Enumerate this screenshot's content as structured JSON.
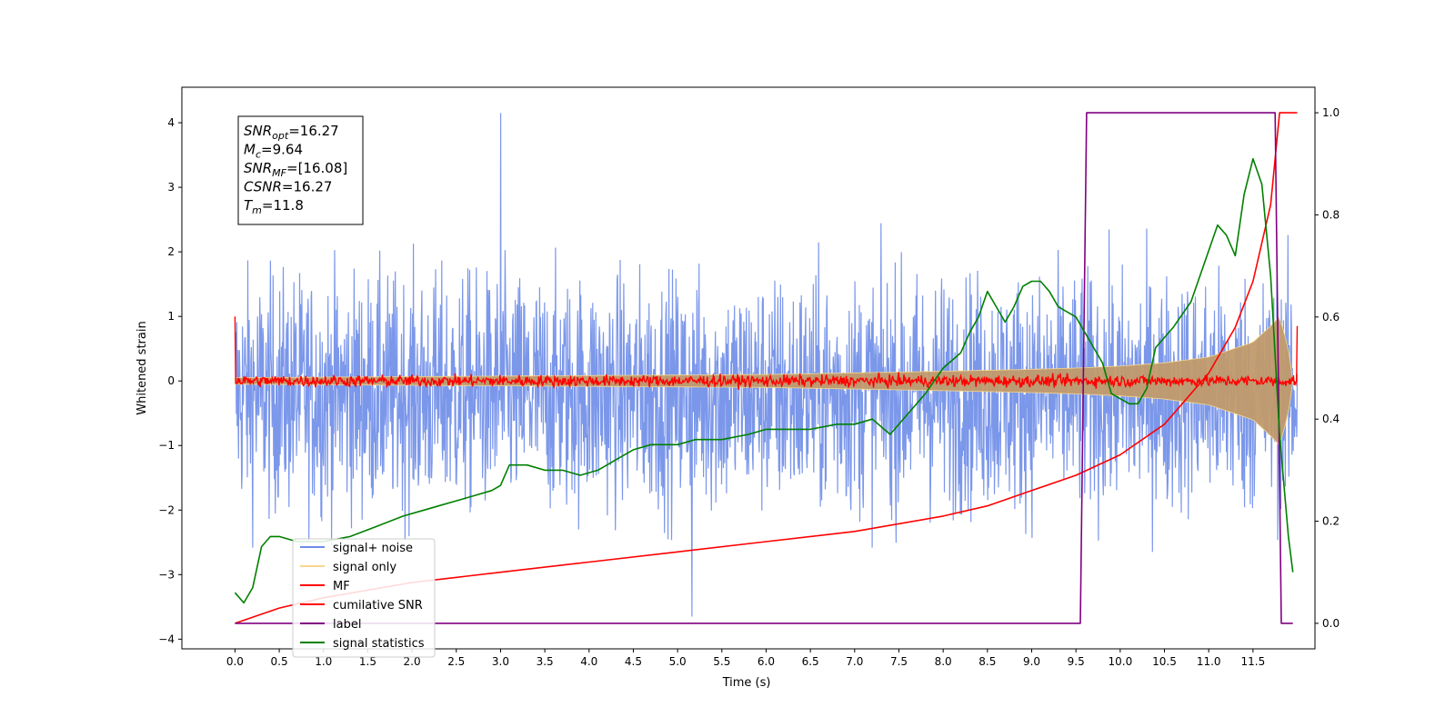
{
  "chart_data": {
    "type": "line",
    "title": "",
    "xlabel": "Time (s)",
    "ylabel": "Whitened strain",
    "y2label": "",
    "xlim": [
      -0.6,
      12.2
    ],
    "ylim": [
      -4.15,
      4.55
    ],
    "y2lim": [
      -0.05,
      1.05
    ],
    "xticks": [
      "0.0",
      "0.5",
      "1.0",
      "1.5",
      "2.0",
      "2.5",
      "3.0",
      "3.5",
      "4.0",
      "4.5",
      "5.0",
      "5.5",
      "6.0",
      "6.5",
      "7.0",
      "7.5",
      "8.0",
      "8.5",
      "9.0",
      "9.5",
      "10.0",
      "10.5",
      "11.0",
      "11.5"
    ],
    "yticks": [
      "−4",
      "−3",
      "−2",
      "−1",
      "0",
      "1",
      "2",
      "3",
      "4"
    ],
    "y2ticks": [
      "0.0",
      "0.2",
      "0.4",
      "0.6",
      "0.8",
      "1.0"
    ],
    "grid": false,
    "legend_position": "lower-left",
    "annotation": {
      "lines": [
        {
          "var": "SNR",
          "sub": "opt",
          "val": "=16.27"
        },
        {
          "var": "M",
          "sub": "c",
          "val": "=9.64"
        },
        {
          "var": "SNR",
          "sub": "MF",
          "val": "=[16.08]"
        },
        {
          "var": "CSNR",
          "sub": "",
          "val": "=16.27"
        },
        {
          "var": "T",
          "sub": "m",
          "val": "=11.8"
        }
      ]
    },
    "series": [
      {
        "name": "signal+ noise",
        "color": "#6d8ce8",
        "axis": "left",
        "style": "noise",
        "x_range": [
          0,
          12.0
        ],
        "center": -0.2,
        "amplitude": 1.8,
        "peak_max": 4.15,
        "peak_min": -3.65
      },
      {
        "name": "signal only",
        "color": "#f5d78f",
        "axis": "left",
        "style": "envelope",
        "x_range": [
          0,
          11.95
        ],
        "x": [
          0,
          6,
          8,
          9,
          9.5,
          10,
          10.5,
          11,
          11.5,
          11.7,
          11.8,
          11.9,
          11.95
        ],
        "envelope": [
          0.05,
          0.1,
          0.15,
          0.18,
          0.2,
          0.23,
          0.28,
          0.37,
          0.6,
          0.85,
          1.0,
          0.5,
          0.0
        ]
      },
      {
        "name": "MF",
        "color": "#ff0000",
        "axis": "left",
        "style": "noise",
        "x_range": [
          0,
          12.0
        ],
        "center": 0.0,
        "amplitude": 0.1,
        "start_value": 1.0,
        "end_value": 0.85
      },
      {
        "name": "cumilative SNR",
        "color": "#ff0000",
        "axis": "right",
        "x": [
          0,
          0.5,
          1,
          2,
          3,
          4,
          5,
          6,
          7,
          8,
          8.5,
          9,
          9.5,
          10,
          10.5,
          11,
          11.3,
          11.5,
          11.7,
          11.8,
          12.0
        ],
        "y": [
          0.0,
          0.03,
          0.05,
          0.08,
          0.1,
          0.12,
          0.14,
          0.16,
          0.18,
          0.21,
          0.23,
          0.26,
          0.29,
          0.33,
          0.39,
          0.49,
          0.58,
          0.67,
          0.82,
          1.0,
          1.0
        ]
      },
      {
        "name": "label",
        "color": "#800080",
        "axis": "right",
        "x": [
          0,
          9.55,
          9.62,
          11.75,
          11.82,
          11.95
        ],
        "y": [
          0,
          0,
          1,
          1,
          0,
          0
        ]
      },
      {
        "name": "signal statistics",
        "color": "#008000",
        "axis": "right",
        "x": [
          0,
          0.1,
          0.2,
          0.3,
          0.4,
          0.5,
          0.7,
          1.0,
          1.3,
          1.6,
          1.9,
          2.1,
          2.3,
          2.5,
          2.7,
          2.9,
          3.0,
          3.1,
          3.3,
          3.5,
          3.7,
          3.9,
          4.1,
          4.3,
          4.5,
          4.7,
          5.0,
          5.2,
          5.5,
          5.8,
          6.0,
          6.3,
          6.5,
          6.8,
          7.0,
          7.2,
          7.4,
          7.6,
          7.8,
          8.0,
          8.2,
          8.3,
          8.4,
          8.5,
          8.6,
          8.7,
          8.8,
          8.9,
          9.0,
          9.1,
          9.2,
          9.3,
          9.4,
          9.5,
          9.6,
          9.7,
          9.8,
          9.9,
          10.0,
          10.1,
          10.2,
          10.3,
          10.4,
          10.6,
          10.8,
          11.0,
          11.1,
          11.2,
          11.3,
          11.4,
          11.5,
          11.6,
          11.7,
          11.8,
          11.9,
          11.95
        ],
        "y": [
          0.06,
          0.04,
          0.07,
          0.15,
          0.17,
          0.17,
          0.16,
          0.16,
          0.17,
          0.19,
          0.21,
          0.22,
          0.23,
          0.24,
          0.25,
          0.26,
          0.27,
          0.31,
          0.31,
          0.3,
          0.3,
          0.29,
          0.3,
          0.32,
          0.34,
          0.35,
          0.35,
          0.36,
          0.36,
          0.37,
          0.38,
          0.38,
          0.38,
          0.39,
          0.39,
          0.4,
          0.37,
          0.41,
          0.45,
          0.5,
          0.53,
          0.57,
          0.6,
          0.65,
          0.62,
          0.59,
          0.62,
          0.66,
          0.67,
          0.67,
          0.65,
          0.62,
          0.61,
          0.6,
          0.57,
          0.54,
          0.51,
          0.45,
          0.44,
          0.43,
          0.43,
          0.46,
          0.54,
          0.58,
          0.63,
          0.73,
          0.78,
          0.76,
          0.72,
          0.84,
          0.91,
          0.86,
          0.68,
          0.37,
          0.17,
          0.1
        ]
      }
    ]
  }
}
